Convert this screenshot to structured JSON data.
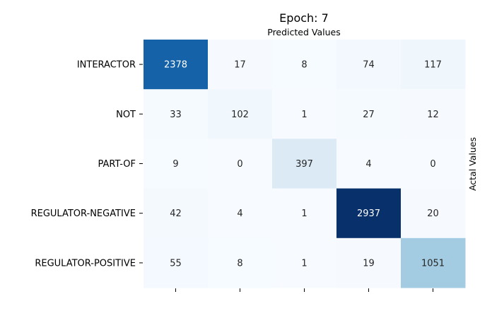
{
  "chart_data": {
    "type": "heatmap",
    "title": "Epoch: 7",
    "xlabel": "Predicted Values",
    "ylabel": "Actal Values",
    "row_labels": [
      "INTERACTOR",
      "NOT",
      "PART-OF",
      "REGULATOR-NEGATIVE",
      "REGULATOR-POSITIVE"
    ],
    "col_labels": [
      "",
      "",
      "",
      "",
      ""
    ],
    "values": [
      [
        2378,
        17,
        8,
        74,
        117
      ],
      [
        33,
        102,
        1,
        27,
        12
      ],
      [
        9,
        0,
        397,
        4,
        0
      ],
      [
        42,
        4,
        1,
        2937,
        20
      ],
      [
        55,
        8,
        1,
        19,
        1051
      ]
    ],
    "vmin": 0,
    "vmax": 2937,
    "colormap": "Blues",
    "colorbar": false
  }
}
